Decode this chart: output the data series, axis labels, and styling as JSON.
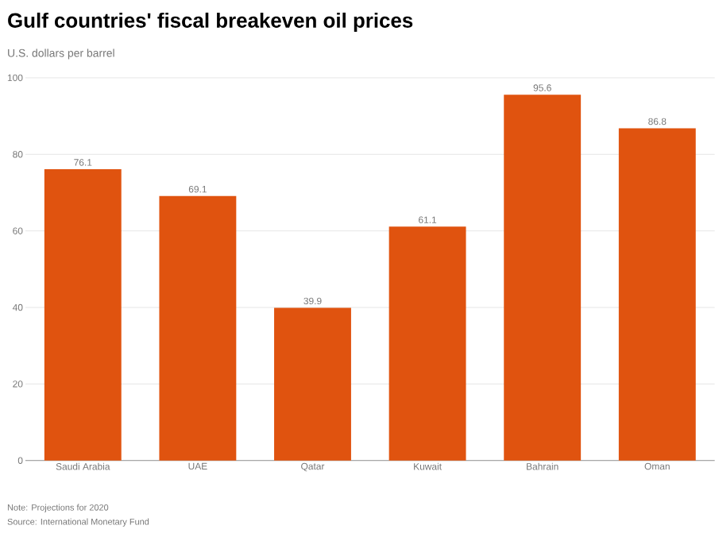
{
  "chart_data": {
    "type": "bar",
    "title": "Gulf countries' fiscal breakeven oil prices",
    "subtitle": "U.S. dollars per barrel",
    "categories": [
      "Saudi Arabia",
      "UAE",
      "Qatar",
      "Kuwait",
      "Bahrain",
      "Oman"
    ],
    "values": [
      76.1,
      69.1,
      39.9,
      61.1,
      95.6,
      86.8
    ],
    "color": "#e0530f",
    "ylim": [
      0,
      100
    ],
    "yticks": [
      0,
      20,
      40,
      60,
      80,
      100
    ],
    "grid": "y",
    "data_labels": true,
    "annotations": [
      "Note: Projections for 2020",
      "Source: International Monetary Fund"
    ]
  }
}
